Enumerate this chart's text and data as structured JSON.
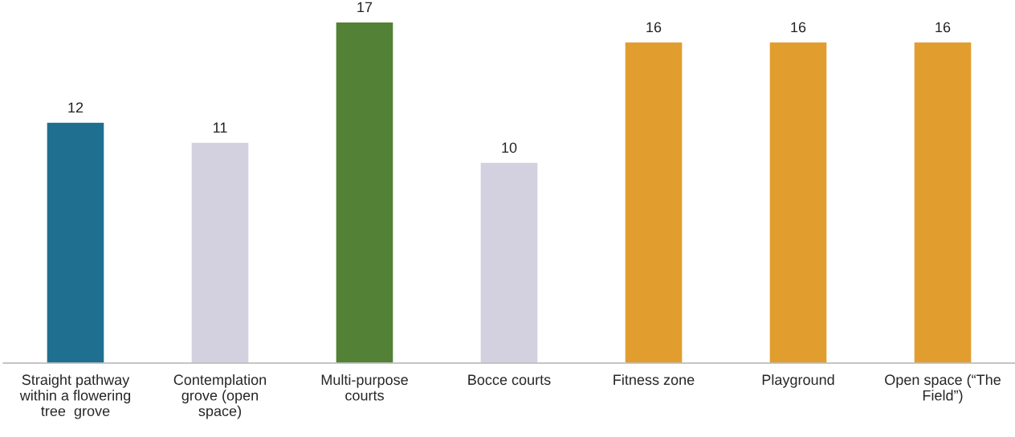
{
  "chart_data": {
    "type": "bar",
    "categories": [
      "Straight pathway\nwithin a flowering\ntree  grove",
      "Contemplation\ngrove (open\nspace)",
      "Multi-purpose\ncourts",
      "Bocce courts",
      "Fitness zone",
      "Playground",
      "Open space (“The\nField”)"
    ],
    "values": [
      12,
      11,
      17,
      10,
      16,
      16,
      16
    ],
    "colors": [
      "#1f7090",
      "#d3d1e0",
      "#538135",
      "#d3d1e0",
      "#e29d2f",
      "#e29d2f",
      "#e29d2f"
    ],
    "data_labels": true,
    "grid": false,
    "legend": false
  }
}
